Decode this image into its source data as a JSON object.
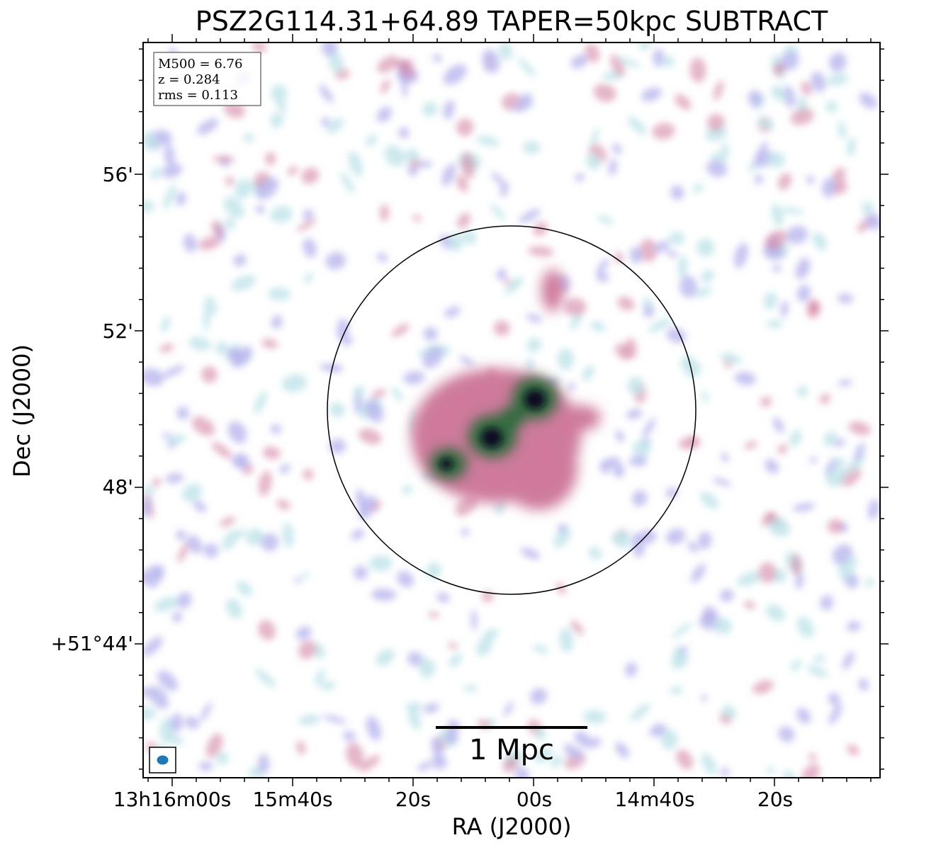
{
  "figure": {
    "title": "PSZ2G114.31+64.89 TAPER=50kpc SUBTRACT",
    "xlabel": "RA (J2000)",
    "ylabel": "Dec (J2000)",
    "x_ticks": [
      "13h16m00s",
      "15m40s",
      "20s",
      "00s",
      "14m40s",
      "20s"
    ],
    "y_ticks": [
      "56'",
      "52'",
      "48'",
      "+51°44'"
    ],
    "info": {
      "mass": "M500 = 6.76",
      "redshift": "z = 0.284",
      "rms": "rms = 0.113"
    },
    "scale_bar_label": "1 Mpc",
    "colors": {
      "noise_light": "#bfe3ea",
      "noise_lavender": "#b9b6ee",
      "emission_pink": "#cf7a9c",
      "emission_green": "#2f6a3e",
      "core_dark": "#0b1020",
      "beam": "#1f77b4"
    }
  }
}
